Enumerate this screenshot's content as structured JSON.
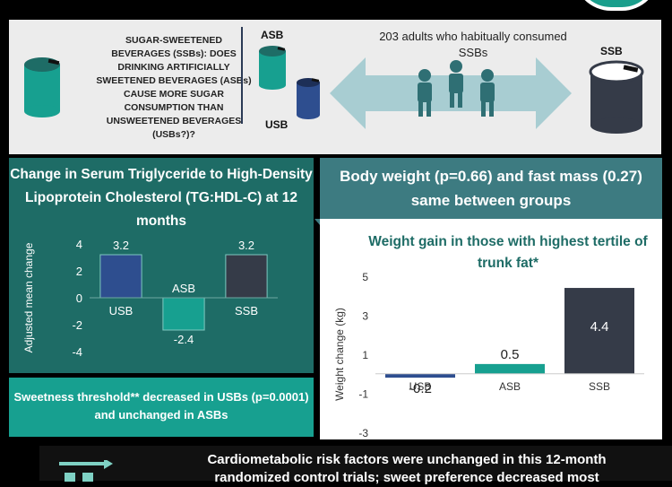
{
  "question": {
    "text": "SUGAR-SWEETENED BEVERAGES (SSBs): DOES DRINKING ARTIFICIALLY SWEETENED BEVERAGES (ASBs) CAUSE MORE SUGAR CONSUMPTION THAN UNSWEETENED BEVERAGES (USBs?)?"
  },
  "study": {
    "asb_label": "ASB",
    "usb_label": "USB",
    "ssb_label": "SSB",
    "population_text": "203 adults who habitually consumed SSBs"
  },
  "tg_panel": {
    "title": "Change in Serum Triglyceride to High-Density Lipoprotein Cholesterol (TG:HDL-C) at 12 months"
  },
  "sweetness": {
    "text": "Sweetness threshold** decreased in USBs (p=0.0001) and unchanged in ASBs"
  },
  "body_weight": {
    "text": "Body weight (p=0.66) and fast mass (0.27) same between groups"
  },
  "weight_panel": {
    "title": "Weight gain in those with highest tertile of trunk fat*"
  },
  "footer": {
    "line1": "Cardiometabolic risk factors were unchanged in this 12-month",
    "line2": "randomized control trials; sweet preference decreased most"
  },
  "colors": {
    "usb": "#2e4e8f",
    "asb": "#17a090",
    "ssb": "#353b48",
    "teal_dark": "#1e6c66",
    "arrow": "#a8cdd2"
  },
  "chart_data": [
    {
      "type": "bar",
      "categories": [
        "USB",
        "ASB",
        "SSB"
      ],
      "values": [
        3.2,
        -2.4,
        3.2
      ],
      "value_labels": [
        "3.2",
        "-2.4",
        "3.2"
      ],
      "title": "",
      "xlabel": "",
      "ylabel": "Adjusted mean change",
      "ylim": [
        -4,
        4
      ],
      "yticks": [
        4,
        2,
        0,
        -2,
        -4
      ],
      "colors": [
        "#2e4e8f",
        "#17a090",
        "#353b48"
      ]
    },
    {
      "type": "bar",
      "categories": [
        "USB",
        "ASB",
        "SSB"
      ],
      "values": [
        -0.2,
        0.5,
        4.4
      ],
      "value_labels": [
        "-0.2",
        "0.5",
        "4.4"
      ],
      "title": "Weight gain in those with highest tertile of trunk fat*",
      "xlabel": "",
      "ylabel": "Weight change (kg)",
      "ylim": [
        -3,
        5
      ],
      "yticks": [
        5,
        3,
        1,
        -1,
        -3
      ],
      "colors": [
        "#2e4e8f",
        "#17a090",
        "#353b48"
      ]
    }
  ]
}
